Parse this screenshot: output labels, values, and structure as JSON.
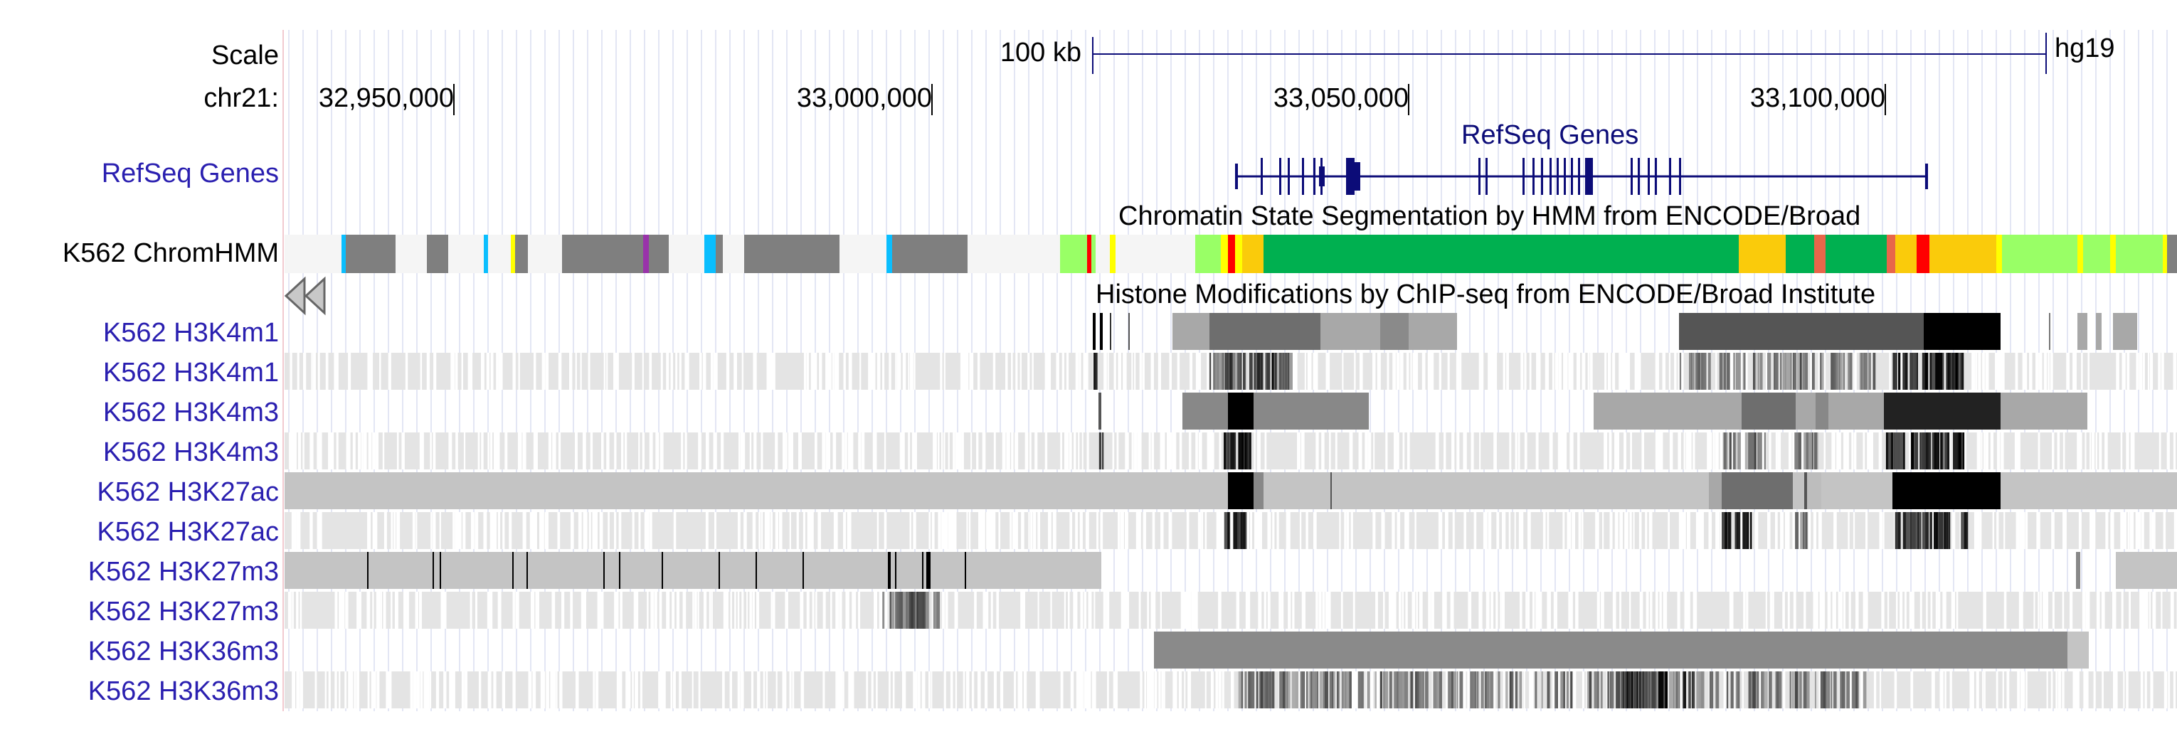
{
  "ruler": {
    "scale_label": "Scale",
    "chrom_label": "chr21:",
    "scale_bar_text": "100 kb",
    "assembly": "hg19",
    "positions": [
      "32,950,000",
      "33,000,000",
      "33,050,000",
      "33,100,000"
    ]
  },
  "tracks": {
    "refseq": {
      "label": "RefSeq Genes",
      "title": "RefSeq Genes"
    },
    "chromhmm": {
      "label": "K562 ChromHMM",
      "title": "Chromatin State Segmentation by HMM from ENCODE/Broad"
    },
    "histone_group_title": "Histone Modifications by ChIP-seq from ENCODE/Broad Institute",
    "histone": [
      {
        "label": "K562 H3K4m1"
      },
      {
        "label": "K562 H3K4m1"
      },
      {
        "label": "K562 H3K4m3"
      },
      {
        "label": "K562 H3K4m3"
      },
      {
        "label": "K562 H3K27ac"
      },
      {
        "label": "K562 H3K27ac"
      },
      {
        "label": "K562 H3K27m3"
      },
      {
        "label": "K562 H3K27m3"
      },
      {
        "label": "K562 H3K36m3"
      },
      {
        "label": "K562 H3K36m3"
      }
    ]
  },
  "colors": {
    "label_link": "#2a1fb0",
    "gene": "#0c0c78",
    "chromhmm_strong_enhancer": "#facb0b",
    "chromhmm_active_promoter": "#ff0000",
    "chromhmm_txn_elongation": "#00b050",
    "chromhmm_weak_txn": "#99ff66",
    "chromhmm_repressed": "#7f7f7f",
    "chromhmm_insulator": "#0abefe",
    "chromhmm_heterochrom": "#f5f5f5"
  },
  "icons": {
    "scroll_left": "double-left-arrow-icon"
  }
}
